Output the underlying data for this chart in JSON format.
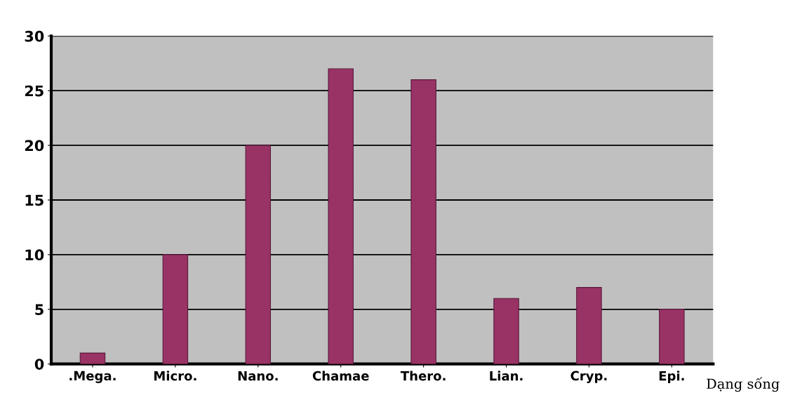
{
  "chart_data": {
    "type": "bar",
    "categories": [
      ".Mega.",
      "Micro.",
      "Nano.",
      "Chamae",
      "Thero.",
      "Lian.",
      "Cryp.",
      "Epi."
    ],
    "values": [
      1,
      10,
      20,
      27,
      26,
      6,
      7,
      5
    ],
    "color": "#993366",
    "xlabel": "Dạng sống",
    "ylim": [
      0,
      30
    ],
    "yticks": [
      0,
      5,
      10,
      15,
      20,
      25,
      30
    ],
    "grid": "y"
  }
}
